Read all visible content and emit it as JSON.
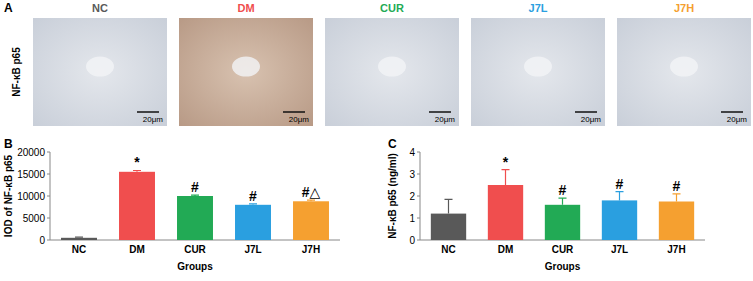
{
  "panel_a": {
    "panel_label": "A",
    "row_label": "NF-κB p65",
    "columns": [
      "NC",
      "DM",
      "CUR",
      "J7L",
      "J7H"
    ],
    "scale_bars": [
      "20μm",
      "20μm",
      "20μm",
      "20μm",
      "20μm"
    ]
  },
  "chart_data": [
    {
      "type": "bar",
      "panel_label": "B",
      "x_label": "Groups",
      "y_label": "IOD of NF-κB p65",
      "categories": [
        "NC",
        "DM",
        "CUR",
        "J7L",
        "J7H"
      ],
      "values": [
        500,
        15500,
        10000,
        8000,
        8800
      ],
      "errors": [
        150,
        300,
        200,
        200,
        250
      ],
      "annotations": [
        null,
        "*",
        "#",
        "#",
        "#△"
      ],
      "colors": [
        "#595959",
        "#f04e4e",
        "#22aa55",
        "#2a9fe0",
        "#f5a030"
      ],
      "ylim": [
        0,
        20000
      ],
      "yticks": [
        0,
        5000,
        10000,
        15000,
        20000
      ],
      "grid": false
    },
    {
      "type": "bar",
      "panel_label": "C",
      "x_label": "Groups",
      "y_label": "NF-κB p65 (ng/ml)",
      "categories": [
        "NC",
        "DM",
        "CUR",
        "J7L",
        "J7H"
      ],
      "values": [
        1.2,
        2.5,
        1.6,
        1.8,
        1.75
      ],
      "errors": [
        0.65,
        0.7,
        0.3,
        0.4,
        0.35
      ],
      "annotations": [
        null,
        "*",
        "#",
        "#",
        "#"
      ],
      "colors": [
        "#595959",
        "#f04e4e",
        "#22aa55",
        "#2a9fe0",
        "#f5a030"
      ],
      "ylim": [
        0,
        4
      ],
      "yticks": [
        0,
        1,
        2,
        3,
        4
      ],
      "grid": false
    }
  ]
}
